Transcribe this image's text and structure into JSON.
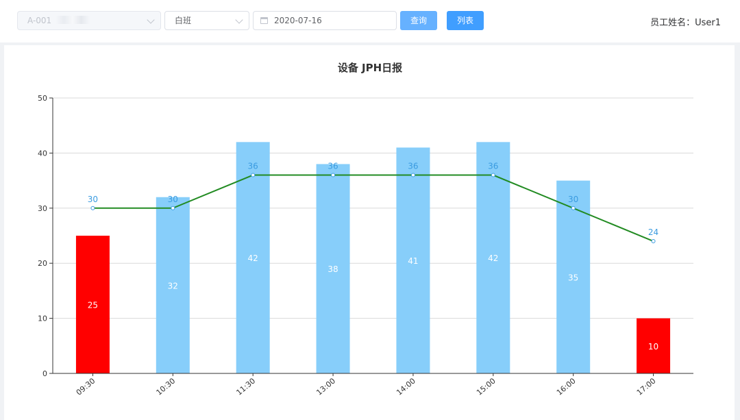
{
  "toolbar": {
    "device_select": {
      "value": "A-001"
    },
    "shift_select": {
      "value": "白班"
    },
    "date_input": {
      "value": "2020-07-16"
    },
    "query_label": "查询",
    "list_label": "列表",
    "employee_label": "员工姓名：",
    "employee_name": "User1"
  },
  "chart_data": {
    "type": "bar",
    "title": "设备 JPH日报",
    "categories": [
      "09:30",
      "10:30",
      "11:30",
      "13:00",
      "14:00",
      "15:00",
      "16:00",
      "17:00"
    ],
    "series": [
      {
        "type": "bar",
        "values": [
          25,
          32,
          42,
          38,
          41,
          42,
          35,
          10
        ]
      },
      {
        "type": "line",
        "values": [
          30,
          30,
          36,
          36,
          36,
          36,
          30,
          24
        ]
      }
    ],
    "ylim": [
      0,
      50
    ],
    "yticks": [
      0,
      10,
      20,
      30,
      40,
      50
    ],
    "grid": true,
    "colors": {
      "bar_normal": "#87cefa",
      "bar_low": "#ff0000",
      "line": "#228b22",
      "line_label": "#3a9be0"
    }
  }
}
